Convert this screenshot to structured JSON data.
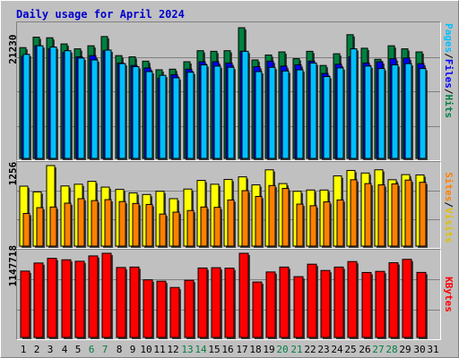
{
  "title": "Daily usage for April 2024",
  "colors": {
    "hits": "#008040",
    "files": "#0000ff",
    "pages": "#00c0ff",
    "visits": "#ffff00",
    "sites": "#ff8000",
    "kbytes": "#ff0000",
    "weekend_label": "#008040",
    "weekday_label": "#000000"
  },
  "chart_data": [
    {
      "type": "bar",
      "title": "Daily usage for April 2024",
      "ylabel_max": "21230",
      "legend": [
        "Pages",
        "Files",
        "Hits"
      ],
      "categories": [
        "1",
        "2",
        "3",
        "4",
        "5",
        "6",
        "7",
        "8",
        "9",
        "10",
        "11",
        "12",
        "13",
        "14",
        "15",
        "16",
        "17",
        "18",
        "19",
        "20",
        "21",
        "22",
        "23",
        "24",
        "25",
        "26",
        "27",
        "28",
        "29",
        "30",
        "31"
      ],
      "series": [
        {
          "name": "Hits",
          "values": [
            18000,
            19700,
            19600,
            18600,
            17800,
            18300,
            19800,
            16700,
            16500,
            15800,
            14400,
            14500,
            15700,
            17500,
            17400,
            17500,
            21230,
            16000,
            16800,
            17300,
            16200,
            17400,
            15100,
            17000,
            20100,
            17900,
            16100,
            18300,
            17800,
            17300,
            0
          ]
        },
        {
          "name": "Files",
          "values": [
            16600,
            18300,
            17800,
            17200,
            16500,
            16700,
            17500,
            15500,
            15100,
            14700,
            13000,
            13600,
            14500,
            15700,
            15700,
            15500,
            17400,
            14900,
            15800,
            15000,
            15200,
            15800,
            13800,
            15300,
            16500,
            15500,
            15700,
            16200,
            16300,
            15400,
            0
          ]
        },
        {
          "name": "Pages",
          "values": [
            16900,
            18300,
            18100,
            17500,
            16300,
            16000,
            17600,
            15400,
            14900,
            14100,
            13500,
            13100,
            14000,
            15200,
            15000,
            14800,
            17400,
            14100,
            14800,
            14200,
            14400,
            15500,
            13300,
            14700,
            17800,
            15000,
            14600,
            15200,
            15400,
            14600,
            0
          ]
        }
      ]
    },
    {
      "type": "bar",
      "ylabel_max": "1256",
      "legend": [
        "Sites",
        "Visits"
      ],
      "categories": [
        "1",
        "2",
        "3",
        "4",
        "5",
        "6",
        "7",
        "8",
        "9",
        "10",
        "11",
        "12",
        "13",
        "14",
        "15",
        "16",
        "17",
        "18",
        "19",
        "20",
        "21",
        "22",
        "23",
        "24",
        "25",
        "26",
        "27",
        "28",
        "29",
        "30",
        "31"
      ],
      "series": [
        {
          "name": "Visits",
          "values": [
            935,
            845,
            1256,
            938,
            965,
            1010,
            920,
            885,
            830,
            805,
            855,
            740,
            890,
            1025,
            965,
            1040,
            1080,
            955,
            1190,
            975,
            855,
            875,
            875,
            1095,
            1180,
            1140,
            1190,
            1035,
            1115,
            1110,
            0
          ]
        },
        {
          "name": "Sites",
          "values": [
            510,
            600,
            610,
            670,
            740,
            710,
            725,
            695,
            665,
            650,
            500,
            530,
            555,
            610,
            605,
            720,
            865,
            775,
            945,
            900,
            655,
            630,
            690,
            720,
            1035,
            975,
            955,
            970,
            1030,
            995,
            0
          ]
        }
      ]
    },
    {
      "type": "bar",
      "ylabel_max": "1147718",
      "legend": [
        "KBytes"
      ],
      "categories": [
        "1",
        "2",
        "3",
        "4",
        "5",
        "6",
        "7",
        "8",
        "9",
        "10",
        "11",
        "12",
        "13",
        "14",
        "15",
        "16",
        "17",
        "18",
        "19",
        "20",
        "21",
        "22",
        "23",
        "24",
        "25",
        "26",
        "27",
        "28",
        "29",
        "30",
        "31"
      ],
      "series": [
        {
          "name": "KBytes",
          "values": [
            905000,
            1015000,
            1079000,
            1059000,
            1039000,
            1112000,
            1147718,
            954000,
            960000,
            786000,
            767000,
            681000,
            779000,
            947000,
            951000,
            945000,
            1147718,
            756000,
            893000,
            960000,
            829000,
            999000,
            913000,
            960000,
            1035000,
            886000,
            901000,
            1019000,
            1065000,
            887000,
            0
          ]
        }
      ]
    }
  ],
  "x_labels": [
    {
      "text": "1",
      "weekend": false
    },
    {
      "text": "2",
      "weekend": false
    },
    {
      "text": "3",
      "weekend": false
    },
    {
      "text": "4",
      "weekend": false
    },
    {
      "text": "5",
      "weekend": false
    },
    {
      "text": "6",
      "weekend": true
    },
    {
      "text": "7",
      "weekend": true
    },
    {
      "text": "8",
      "weekend": false
    },
    {
      "text": "9",
      "weekend": false
    },
    {
      "text": "10",
      "weekend": false
    },
    {
      "text": "11",
      "weekend": false
    },
    {
      "text": "12",
      "weekend": false
    },
    {
      "text": "13",
      "weekend": true
    },
    {
      "text": "14",
      "weekend": true
    },
    {
      "text": "15",
      "weekend": false
    },
    {
      "text": "16",
      "weekend": false
    },
    {
      "text": "17",
      "weekend": false
    },
    {
      "text": "18",
      "weekend": false
    },
    {
      "text": "19",
      "weekend": false
    },
    {
      "text": "20",
      "weekend": true
    },
    {
      "text": "21",
      "weekend": true
    },
    {
      "text": "22",
      "weekend": false
    },
    {
      "text": "23",
      "weekend": false
    },
    {
      "text": "24",
      "weekend": false
    },
    {
      "text": "25",
      "weekend": false
    },
    {
      "text": "26",
      "weekend": false
    },
    {
      "text": "27",
      "weekend": true
    },
    {
      "text": "28",
      "weekend": true
    },
    {
      "text": "29",
      "weekend": false
    },
    {
      "text": "30",
      "weekend": false
    },
    {
      "text": "31",
      "weekend": false
    }
  ],
  "right_labels": {
    "top": {
      "pages": "Pages",
      "files": "Files",
      "hits": "Hits",
      "sep": "/"
    },
    "mid": {
      "sites": "Sites",
      "visits": "Visits",
      "sep": "/"
    },
    "bot": {
      "kbytes": "KBytes"
    }
  }
}
